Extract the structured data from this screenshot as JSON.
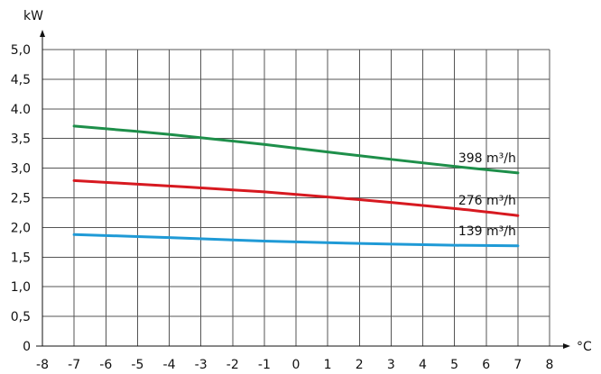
{
  "chart_data": {
    "type": "line",
    "title": "",
    "xlabel": "°C",
    "ylabel": "kW",
    "xlim": [
      -8,
      8
    ],
    "ylim": [
      0,
      5.0
    ],
    "grid": true,
    "x_ticks": [
      "-8",
      "-7",
      "-6",
      "-5",
      "-4",
      "-3",
      "-2",
      "-1",
      "0",
      "1",
      "2",
      "3",
      "4",
      "5",
      "6",
      "7",
      "8"
    ],
    "y_ticks": [
      "0",
      "0,5",
      "1,0",
      "1,5",
      "2,0",
      "2,5",
      "3,0",
      "3,5",
      "4.0",
      "4,5",
      "5,0"
    ],
    "series": [
      {
        "name": "398 m³/h",
        "color": "#1e8f4a",
        "x": [
          -7,
          -4,
          -1,
          2,
          5,
          7
        ],
        "y": [
          3.71,
          3.57,
          3.4,
          3.21,
          3.03,
          2.92
        ]
      },
      {
        "name": "276 m³/h",
        "color": "#d71920",
        "x": [
          -7,
          -4,
          -1,
          2,
          5,
          7
        ],
        "y": [
          2.79,
          2.7,
          2.6,
          2.47,
          2.32,
          2.2
        ]
      },
      {
        "name": "139 m³/h",
        "color": "#1f9ad6",
        "x": [
          -7,
          -4,
          -1,
          2,
          5,
          7
        ],
        "y": [
          1.88,
          1.83,
          1.77,
          1.73,
          1.7,
          1.69
        ]
      }
    ]
  }
}
